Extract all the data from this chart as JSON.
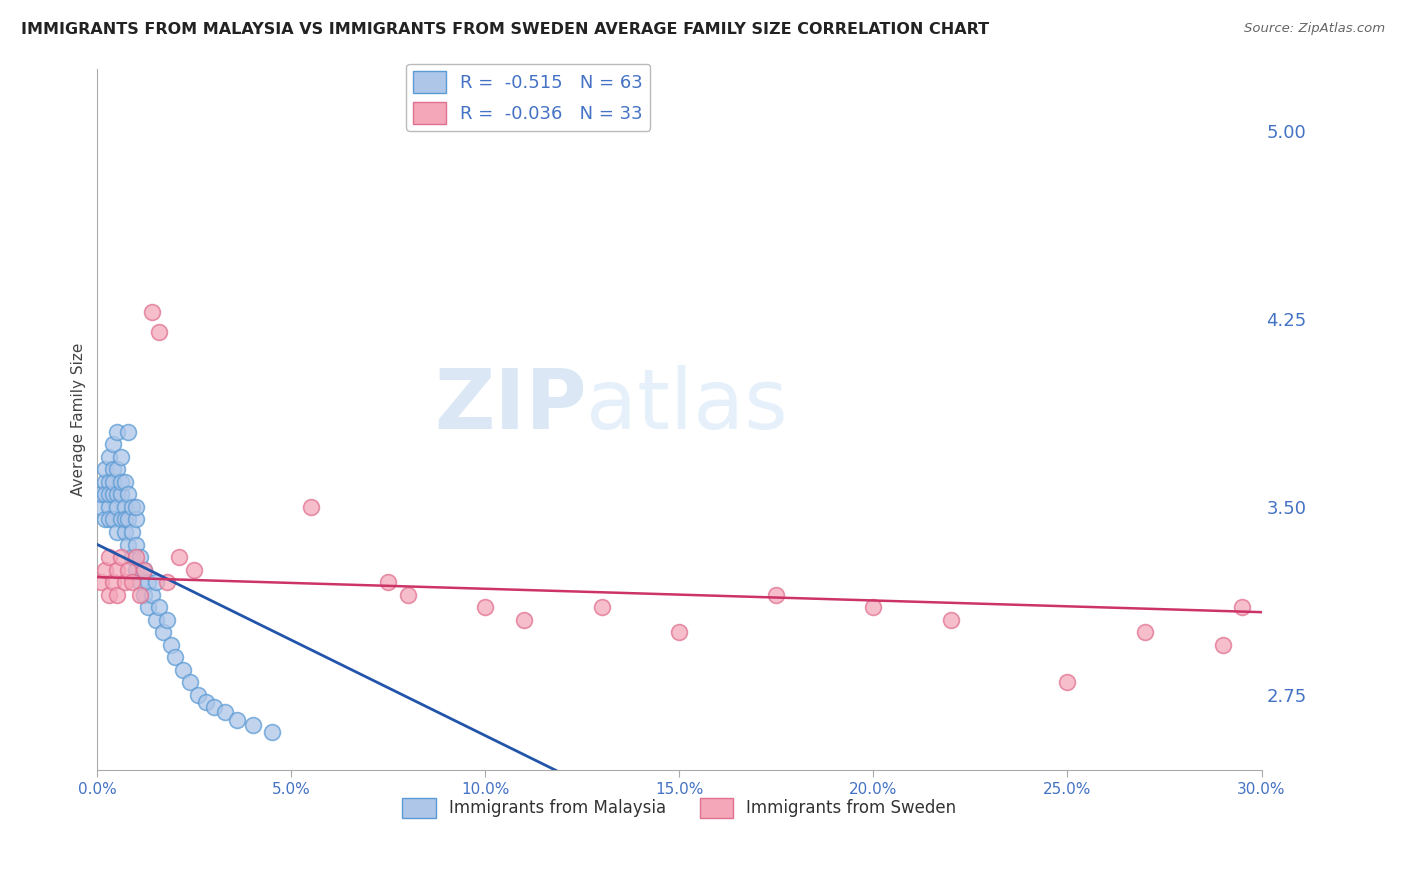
{
  "title": "IMMIGRANTS FROM MALAYSIA VS IMMIGRANTS FROM SWEDEN AVERAGE FAMILY SIZE CORRELATION CHART",
  "source": "Source: ZipAtlas.com",
  "ylabel": "Average Family Size",
  "xlim": [
    0.0,
    0.3
  ],
  "ylim": [
    2.45,
    5.25
  ],
  "yticks": [
    2.75,
    3.5,
    4.25,
    5.0
  ],
  "xticks": [
    0.0,
    0.05,
    0.1,
    0.15,
    0.2,
    0.25,
    0.3
  ],
  "xtick_labels": [
    "0.0%",
    "5.0%",
    "10.0%",
    "15.0%",
    "20.0%",
    "25.0%",
    "30.0%"
  ],
  "malaysia_color": "#aec6e8",
  "malaysia_edge": "#5b9bd5",
  "sweden_color": "#f4a7b9",
  "sweden_edge": "#e07090",
  "blue_line_color": "#2255aa",
  "pink_line_color": "#cc3366",
  "watermark_zip": "ZIP",
  "watermark_atlas": "atlas",
  "background_color": "#ffffff",
  "grid_color": "#cccccc",
  "axis_color": "#4472c4",
  "malaysia_x": [
    0.001,
    0.001,
    0.002,
    0.002,
    0.002,
    0.002,
    0.003,
    0.003,
    0.003,
    0.003,
    0.003,
    0.004,
    0.004,
    0.004,
    0.004,
    0.004,
    0.005,
    0.005,
    0.005,
    0.005,
    0.005,
    0.006,
    0.006,
    0.006,
    0.006,
    0.007,
    0.007,
    0.007,
    0.007,
    0.008,
    0.008,
    0.008,
    0.009,
    0.009,
    0.009,
    0.01,
    0.01,
    0.01,
    0.011,
    0.011,
    0.012,
    0.012,
    0.013,
    0.013,
    0.014,
    0.015,
    0.015,
    0.016,
    0.017,
    0.018,
    0.019,
    0.02,
    0.022,
    0.024,
    0.026,
    0.028,
    0.03,
    0.033,
    0.036,
    0.04,
    0.045,
    0.01,
    0.008
  ],
  "malaysia_y": [
    3.5,
    3.55,
    3.6,
    3.65,
    3.55,
    3.45,
    3.7,
    3.6,
    3.5,
    3.45,
    3.55,
    3.75,
    3.65,
    3.55,
    3.45,
    3.6,
    3.8,
    3.55,
    3.65,
    3.5,
    3.4,
    3.7,
    3.55,
    3.45,
    3.6,
    3.5,
    3.4,
    3.6,
    3.45,
    3.55,
    3.35,
    3.45,
    3.4,
    3.3,
    3.5,
    3.45,
    3.35,
    3.25,
    3.3,
    3.2,
    3.25,
    3.15,
    3.2,
    3.1,
    3.15,
    3.05,
    3.2,
    3.1,
    3.0,
    3.05,
    2.95,
    2.9,
    2.85,
    2.8,
    2.75,
    2.72,
    2.7,
    2.68,
    2.65,
    2.63,
    2.6,
    3.5,
    3.8
  ],
  "sweden_x": [
    0.001,
    0.002,
    0.003,
    0.003,
    0.004,
    0.005,
    0.005,
    0.006,
    0.007,
    0.008,
    0.009,
    0.01,
    0.011,
    0.012,
    0.014,
    0.016,
    0.018,
    0.021,
    0.025,
    0.055,
    0.075,
    0.08,
    0.1,
    0.11,
    0.13,
    0.15,
    0.175,
    0.2,
    0.22,
    0.25,
    0.27,
    0.29,
    0.295
  ],
  "sweden_y": [
    3.2,
    3.25,
    3.3,
    3.15,
    3.2,
    3.25,
    3.15,
    3.3,
    3.2,
    3.25,
    3.2,
    3.3,
    3.15,
    3.25,
    4.28,
    4.2,
    3.2,
    3.3,
    3.25,
    3.5,
    3.2,
    3.15,
    3.1,
    3.05,
    3.1,
    3.0,
    3.15,
    3.1,
    3.05,
    2.8,
    3.0,
    2.95,
    3.1
  ],
  "blue_line_x": [
    0.0,
    0.135
  ],
  "blue_line_y": [
    3.35,
    2.32
  ],
  "pink_line_x": [
    0.0,
    0.3
  ],
  "pink_line_y": [
    3.22,
    3.08
  ]
}
